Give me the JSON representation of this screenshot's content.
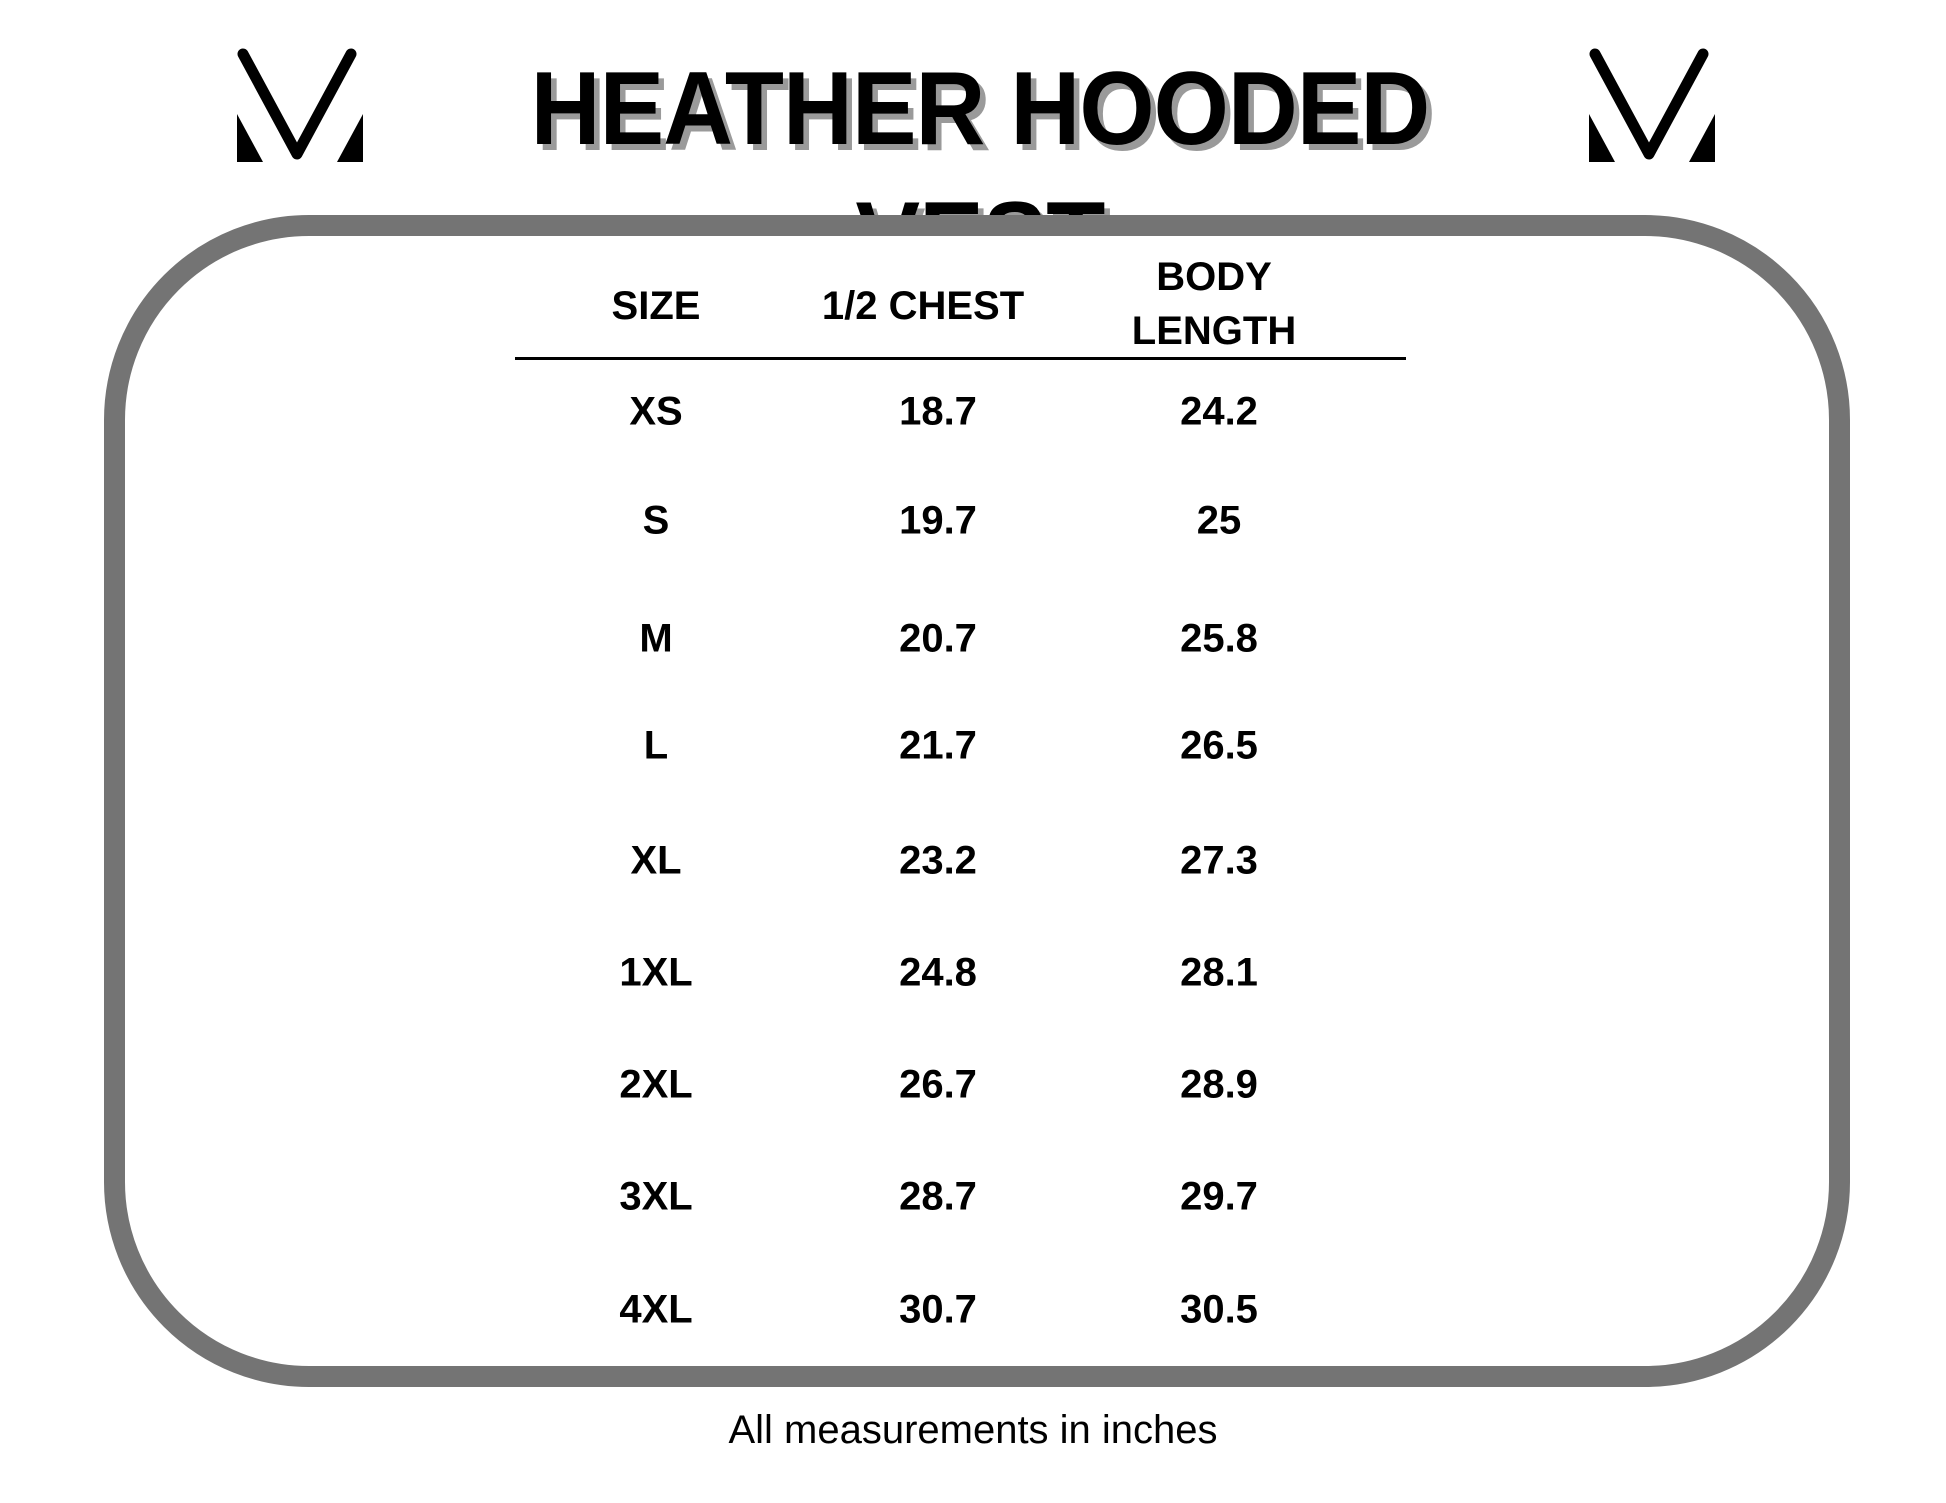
{
  "header": {
    "title": "HEATHER HOODED VEST",
    "logo_icon": "chevron-v-logo"
  },
  "table": {
    "columns": [
      "SIZE",
      "1/2 CHEST",
      "BODY LENGTH"
    ],
    "body_length_lines": [
      "BODY",
      "LENGTH"
    ],
    "rows": [
      {
        "size": "XS",
        "chest": "18.7",
        "length": "24.2"
      },
      {
        "size": "S",
        "chest": "19.7",
        "length": "25"
      },
      {
        "size": "M",
        "chest": "20.7",
        "length": "25.8"
      },
      {
        "size": "L",
        "chest": "21.7",
        "length": "26.5"
      },
      {
        "size": "XL",
        "chest": "23.2",
        "length": "27.3"
      },
      {
        "size": "1XL",
        "chest": "24.8",
        "length": "28.1"
      },
      {
        "size": "2XL",
        "chest": "26.7",
        "length": "28.9"
      },
      {
        "size": "3XL",
        "chest": "28.7",
        "length": "29.7"
      },
      {
        "size": "4XL",
        "chest": "30.7",
        "length": "30.5"
      }
    ]
  },
  "footer": {
    "caption": "All measurements in inches"
  },
  "colors": {
    "border": "#747474",
    "title_shadow": "#9a9a9a",
    "text": "#000000"
  }
}
